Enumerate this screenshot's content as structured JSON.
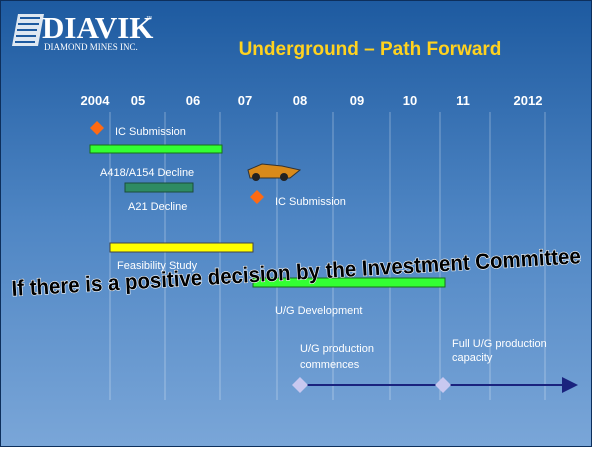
{
  "header": {
    "logo": "DIAVIK",
    "logo_sub": "DIAMOND MINES INC.",
    "logo_mark": "™",
    "title": "Underground – Path Forward"
  },
  "years": [
    "2004",
    "05",
    "06",
    "07",
    "08",
    "09",
    "10",
    "11",
    "2012"
  ],
  "tasks": [
    {
      "label": "IC Submission"
    },
    {
      "label": "A418/A154 Decline"
    },
    {
      "label": "A21 Decline"
    },
    {
      "label": "IC Submission"
    },
    {
      "label": "Feasibility Study"
    },
    {
      "label": "U/G Development"
    }
  ],
  "banner": "If there is a positive decision by the Investment Committee",
  "milestones": [
    {
      "line1": "U/G production",
      "line2": "commences"
    },
    {
      "line1": "Full U/G production",
      "line2": "capacity"
    }
  ]
}
